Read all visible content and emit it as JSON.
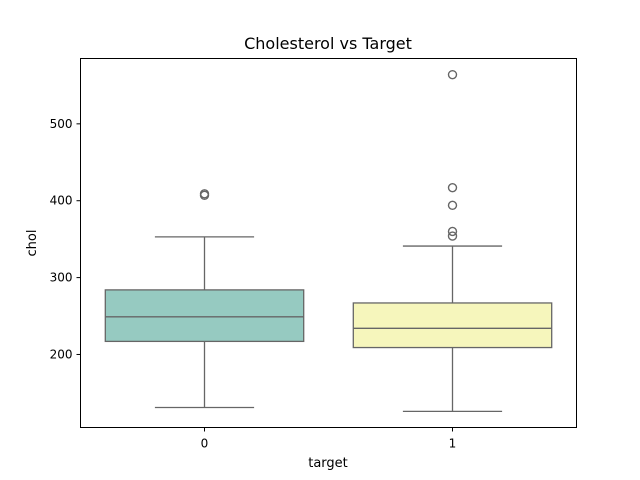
{
  "chart_data": {
    "type": "box",
    "title": "Cholesterol vs Target",
    "xlabel": "target",
    "ylabel": "chol",
    "categories": [
      "0",
      "1"
    ],
    "ylim": [
      105,
      585
    ],
    "yticks": [
      200,
      300,
      400,
      500
    ],
    "grid": false,
    "boxes": [
      {
        "category": "0",
        "whisker_low": 131,
        "q1": 217,
        "median": 249,
        "q3": 284,
        "whisker_high": 353,
        "outliers": [
          407,
          409
        ],
        "color": "#96cac1"
      },
      {
        "category": "1",
        "whisker_low": 126,
        "q1": 209,
        "median": 234,
        "q3": 267,
        "whisker_high": 341,
        "outliers": [
          354,
          360,
          394,
          417,
          564
        ],
        "color": "#f6f6bc"
      }
    ]
  }
}
